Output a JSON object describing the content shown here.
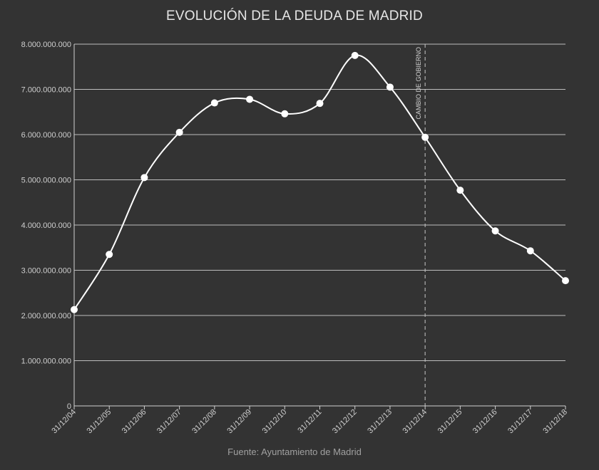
{
  "chart_data": {
    "type": "line",
    "title": "EVOLUCIÓN DE LA DEUDA DE MADRID",
    "source": "Fuente: Ayuntamiento de Madrid",
    "xlabel": "",
    "ylabel": "",
    "ylim": [
      0,
      8000000000
    ],
    "yticks": [
      0,
      1000000000,
      2000000000,
      3000000000,
      4000000000,
      5000000000,
      6000000000,
      7000000000,
      8000000000
    ],
    "ytick_labels": [
      "0",
      "1.000.000.000",
      "2.000.000.000",
      "3.000.000.000",
      "4.000.000.000",
      "5.000.000.000",
      "6.000.000.000",
      "7.000.000.000",
      "8.000.000.000"
    ],
    "categories": [
      "31/12/04",
      "31/12/05",
      "31/12/06",
      "31/12/07",
      "31/12/08",
      "31/12/09",
      "31/12/10",
      "31/12/11",
      "31/12/12",
      "31/12/13",
      "31/12/14",
      "31/12/15",
      "31/12/16",
      "31/12/17",
      "31/12/18"
    ],
    "series": [
      {
        "values": [
          2130000000,
          3350000000,
          5050000000,
          6050000000,
          6700000000,
          6780000000,
          6460000000,
          6690000000,
          7750000000,
          7050000000,
          5940000000,
          4770000000,
          3870000000,
          3430000000,
          2770000000
        ]
      }
    ],
    "annotations": [
      {
        "category": "31/12/14",
        "label": "CAMBIO DE GOBIERNO",
        "style": "dashed-vertical"
      }
    ],
    "grid": "horizontal",
    "colors": {
      "background": "#333333",
      "line": "#ffffff",
      "grid": "#bdbdbd",
      "text": "#cfcfcf"
    }
  }
}
